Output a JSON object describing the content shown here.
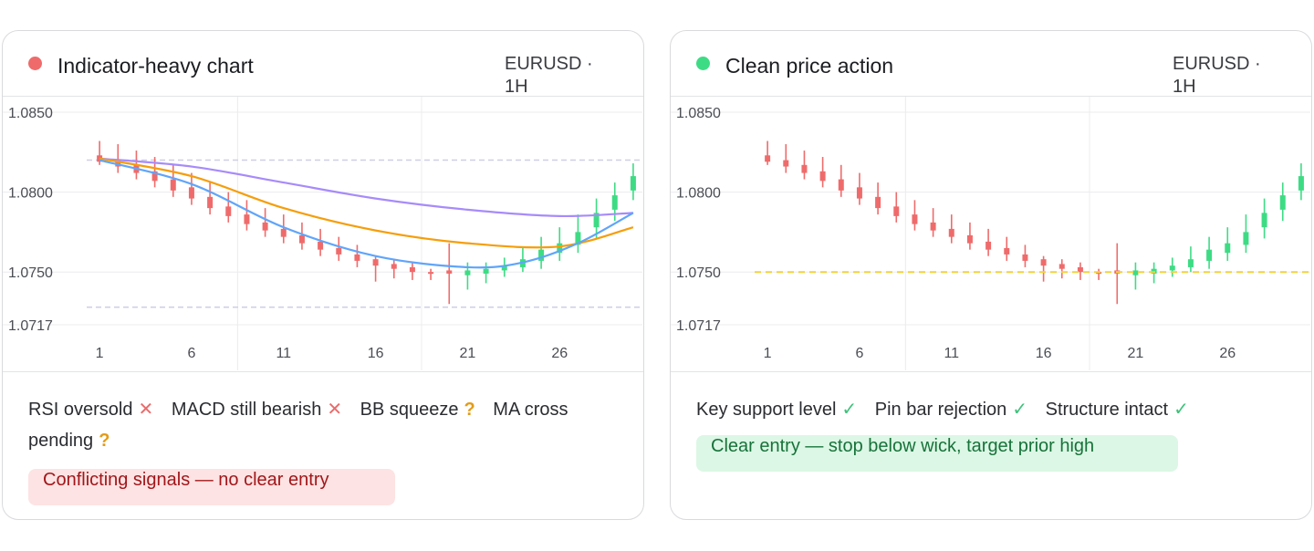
{
  "panels": [
    {
      "id": "left",
      "title": "Indicator-heavy chart",
      "pair": "EURUSD · 1H",
      "status_color": "#ef6b6b",
      "signals": [
        {
          "label": "RSI oversold",
          "mark": "✕",
          "kind": "x"
        },
        {
          "label": "MACD still bearish",
          "mark": "✕",
          "kind": "x"
        },
        {
          "label": "BB squeeze",
          "mark": "?",
          "kind": "q"
        },
        {
          "label": "MA cross pending",
          "mark": "?",
          "kind": "q"
        }
      ],
      "verdict": "Conflicting signals — no clear entry"
    },
    {
      "id": "right",
      "title": "Clean price action",
      "pair": "EURUSD · 1H",
      "status_color": "#3ddc84",
      "signals": [
        {
          "label": "Key support level",
          "mark": "✓",
          "kind": "c"
        },
        {
          "label": "Pin bar rejection",
          "mark": "✓",
          "kind": "c"
        },
        {
          "label": "Structure intact",
          "mark": "✓",
          "kind": "c"
        }
      ],
      "verdict": "Clear entry — stop below wick, target prior high"
    }
  ],
  "chart_data": [
    {
      "type": "candlestick",
      "panel": "left",
      "y_ticks": [
        "1.0850",
        "1.0800",
        "1.0750",
        "1.0717"
      ],
      "y_tick_values": [
        1.085,
        1.08,
        1.075,
        1.0717
      ],
      "x_ticks": [
        "1",
        "6",
        "11",
        "16",
        "21",
        "26"
      ],
      "x_tick_values": [
        1,
        6,
        11,
        16,
        21,
        26
      ],
      "ylim": [
        1.0717,
        1.085
      ],
      "xlim": [
        0.3,
        30.5
      ],
      "grid": true,
      "up_color": "#3ddc84",
      "down_color": "#ef6b6b",
      "candles": [
        {
          "x": 1,
          "open": 1.0823,
          "close": 1.0819,
          "high": 1.0832,
          "low": 1.0817
        },
        {
          "x": 2,
          "open": 1.082,
          "close": 1.0816,
          "high": 1.083,
          "low": 1.0812
        },
        {
          "x": 3,
          "open": 1.0817,
          "close": 1.0812,
          "high": 1.0826,
          "low": 1.0808
        },
        {
          "x": 4,
          "open": 1.0813,
          "close": 1.0807,
          "high": 1.0822,
          "low": 1.0803
        },
        {
          "x": 5,
          "open": 1.0808,
          "close": 1.0801,
          "high": 1.0817,
          "low": 1.0797
        },
        {
          "x": 6,
          "open": 1.0803,
          "close": 1.0796,
          "high": 1.0812,
          "low": 1.0792
        },
        {
          "x": 7,
          "open": 1.0797,
          "close": 1.079,
          "high": 1.0806,
          "low": 1.0786
        },
        {
          "x": 8,
          "open": 1.0791,
          "close": 1.0785,
          "high": 1.08,
          "low": 1.0781
        },
        {
          "x": 9,
          "open": 1.0786,
          "close": 1.078,
          "high": 1.0795,
          "low": 1.0776
        },
        {
          "x": 10,
          "open": 1.0781,
          "close": 1.0776,
          "high": 1.079,
          "low": 1.0772
        },
        {
          "x": 11,
          "open": 1.0777,
          "close": 1.0772,
          "high": 1.0786,
          "low": 1.0768
        },
        {
          "x": 12,
          "open": 1.0773,
          "close": 1.0768,
          "high": 1.0781,
          "low": 1.0764
        },
        {
          "x": 13,
          "open": 1.0769,
          "close": 1.0764,
          "high": 1.0777,
          "low": 1.076
        },
        {
          "x": 14,
          "open": 1.0765,
          "close": 1.0761,
          "high": 1.0772,
          "low": 1.0757
        },
        {
          "x": 15,
          "open": 1.0761,
          "close": 1.0757,
          "high": 1.0767,
          "low": 1.0753
        },
        {
          "x": 16,
          "open": 1.0758,
          "close": 1.0754,
          "high": 1.076,
          "low": 1.0744
        },
        {
          "x": 17,
          "open": 1.0755,
          "close": 1.0752,
          "high": 1.0758,
          "low": 1.0746
        },
        {
          "x": 18,
          "open": 1.0753,
          "close": 1.075,
          "high": 1.0756,
          "low": 1.0745
        },
        {
          "x": 19,
          "open": 1.075,
          "close": 1.0749,
          "high": 1.0752,
          "low": 1.0745
        },
        {
          "x": 20,
          "open": 1.0751,
          "close": 1.0749,
          "high": 1.0768,
          "low": 1.073
        },
        {
          "x": 21,
          "open": 1.0748,
          "close": 1.0751,
          "high": 1.0756,
          "low": 1.0739
        },
        {
          "x": 22,
          "open": 1.0749,
          "close": 1.0752,
          "high": 1.0756,
          "low": 1.0743
        },
        {
          "x": 23,
          "open": 1.0751,
          "close": 1.0754,
          "high": 1.0759,
          "low": 1.0747
        },
        {
          "x": 24,
          "open": 1.0753,
          "close": 1.0758,
          "high": 1.0766,
          "low": 1.075
        },
        {
          "x": 25,
          "open": 1.0757,
          "close": 1.0764,
          "high": 1.0772,
          "low": 1.0752
        },
        {
          "x": 26,
          "open": 1.0762,
          "close": 1.0768,
          "high": 1.0778,
          "low": 1.0757
        },
        {
          "x": 27,
          "open": 1.0767,
          "close": 1.0775,
          "high": 1.0786,
          "low": 1.0762
        },
        {
          "x": 28,
          "open": 1.0778,
          "close": 1.0787,
          "high": 1.0796,
          "low": 1.0771
        },
        {
          "x": 29,
          "open": 1.0789,
          "close": 1.0798,
          "high": 1.0806,
          "low": 1.0782
        },
        {
          "x": 30,
          "open": 1.0801,
          "close": 1.081,
          "high": 1.0818,
          "low": 1.0795
        }
      ],
      "indicators": [
        {
          "color": "#a78bfa",
          "points": [
            [
              1,
              1.0821
            ],
            [
              6,
              1.0816
            ],
            [
              11,
              1.0806
            ],
            [
              16,
              1.0796
            ],
            [
              21,
              1.0789
            ],
            [
              26,
              1.0785
            ],
            [
              30,
              1.0787
            ]
          ]
        },
        {
          "color": "#f59e0b",
          "points": [
            [
              1,
              1.0821
            ],
            [
              6,
              1.081
            ],
            [
              11,
              1.079
            ],
            [
              16,
              1.0776
            ],
            [
              21,
              1.0768
            ],
            [
              26,
              1.0766
            ],
            [
              30,
              1.0778
            ]
          ]
        },
        {
          "color": "#60a5fa",
          "points": [
            [
              1,
              1.082
            ],
            [
              6,
              1.0805
            ],
            [
              11,
              1.0778
            ],
            [
              16,
              1.076
            ],
            [
              21,
              1.0753
            ],
            [
              24,
              1.0756
            ],
            [
              27,
              1.0768
            ],
            [
              30,
              1.0787
            ]
          ]
        }
      ],
      "bands": [
        {
          "color": "#cfcfe6",
          "value": 1.082
        },
        {
          "color": "#cfcfe6",
          "value": 1.0728
        }
      ]
    },
    {
      "type": "candlestick",
      "panel": "right",
      "y_ticks": [
        "1.0850",
        "1.0800",
        "1.0750",
        "1.0717"
      ],
      "y_tick_values": [
        1.085,
        1.08,
        1.075,
        1.0717
      ],
      "x_ticks": [
        "1",
        "6",
        "11",
        "16",
        "21",
        "26"
      ],
      "x_tick_values": [
        1,
        6,
        11,
        16,
        21,
        26
      ],
      "ylim": [
        1.0717,
        1.085
      ],
      "xlim": [
        0.3,
        30.5
      ],
      "grid": true,
      "up_color": "#3ddc84",
      "down_color": "#ef6b6b",
      "candles": [
        {
          "x": 1,
          "open": 1.0823,
          "close": 1.0819,
          "high": 1.0832,
          "low": 1.0817
        },
        {
          "x": 2,
          "open": 1.082,
          "close": 1.0816,
          "high": 1.083,
          "low": 1.0812
        },
        {
          "x": 3,
          "open": 1.0817,
          "close": 1.0812,
          "high": 1.0826,
          "low": 1.0808
        },
        {
          "x": 4,
          "open": 1.0813,
          "close": 1.0807,
          "high": 1.0822,
          "low": 1.0803
        },
        {
          "x": 5,
          "open": 1.0808,
          "close": 1.0801,
          "high": 1.0817,
          "low": 1.0797
        },
        {
          "x": 6,
          "open": 1.0803,
          "close": 1.0796,
          "high": 1.0812,
          "low": 1.0792
        },
        {
          "x": 7,
          "open": 1.0797,
          "close": 1.079,
          "high": 1.0806,
          "low": 1.0786
        },
        {
          "x": 8,
          "open": 1.0791,
          "close": 1.0785,
          "high": 1.08,
          "low": 1.0781
        },
        {
          "x": 9,
          "open": 1.0786,
          "close": 1.078,
          "high": 1.0795,
          "low": 1.0776
        },
        {
          "x": 10,
          "open": 1.0781,
          "close": 1.0776,
          "high": 1.079,
          "low": 1.0772
        },
        {
          "x": 11,
          "open": 1.0777,
          "close": 1.0772,
          "high": 1.0786,
          "low": 1.0768
        },
        {
          "x": 12,
          "open": 1.0773,
          "close": 1.0768,
          "high": 1.0781,
          "low": 1.0764
        },
        {
          "x": 13,
          "open": 1.0769,
          "close": 1.0764,
          "high": 1.0777,
          "low": 1.076
        },
        {
          "x": 14,
          "open": 1.0765,
          "close": 1.0761,
          "high": 1.0772,
          "low": 1.0757
        },
        {
          "x": 15,
          "open": 1.0761,
          "close": 1.0757,
          "high": 1.0767,
          "low": 1.0753
        },
        {
          "x": 16,
          "open": 1.0758,
          "close": 1.0754,
          "high": 1.076,
          "low": 1.0744
        },
        {
          "x": 17,
          "open": 1.0755,
          "close": 1.0752,
          "high": 1.0758,
          "low": 1.0746
        },
        {
          "x": 18,
          "open": 1.0753,
          "close": 1.075,
          "high": 1.0756,
          "low": 1.0745
        },
        {
          "x": 19,
          "open": 1.075,
          "close": 1.0749,
          "high": 1.0752,
          "low": 1.0745
        },
        {
          "x": 20,
          "open": 1.0751,
          "close": 1.0749,
          "high": 1.0768,
          "low": 1.073
        },
        {
          "x": 21,
          "open": 1.0748,
          "close": 1.0751,
          "high": 1.0756,
          "low": 1.0739
        },
        {
          "x": 22,
          "open": 1.0749,
          "close": 1.0752,
          "high": 1.0756,
          "low": 1.0743
        },
        {
          "x": 23,
          "open": 1.0751,
          "close": 1.0754,
          "high": 1.0759,
          "low": 1.0747
        },
        {
          "x": 24,
          "open": 1.0753,
          "close": 1.0758,
          "high": 1.0766,
          "low": 1.075
        },
        {
          "x": 25,
          "open": 1.0757,
          "close": 1.0764,
          "high": 1.0772,
          "low": 1.0752
        },
        {
          "x": 26,
          "open": 1.0762,
          "close": 1.0768,
          "high": 1.0778,
          "low": 1.0757
        },
        {
          "x": 27,
          "open": 1.0767,
          "close": 1.0775,
          "high": 1.0786,
          "low": 1.0762
        },
        {
          "x": 28,
          "open": 1.0778,
          "close": 1.0787,
          "high": 1.0796,
          "low": 1.0771
        },
        {
          "x": 29,
          "open": 1.0789,
          "close": 1.0798,
          "high": 1.0806,
          "low": 1.0782
        },
        {
          "x": 30,
          "open": 1.0801,
          "close": 1.081,
          "high": 1.0818,
          "low": 1.0795
        }
      ],
      "support_level": {
        "value": 1.075,
        "color": "#f4d23c"
      }
    }
  ]
}
